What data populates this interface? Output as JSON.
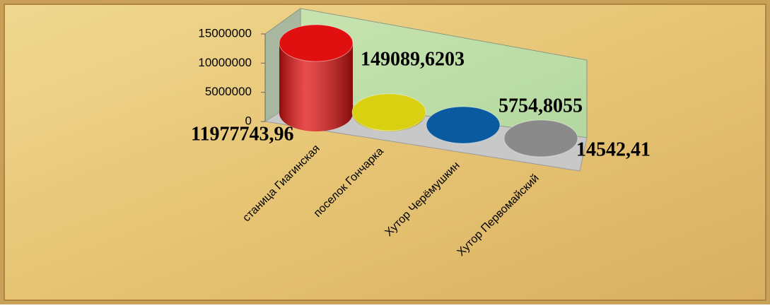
{
  "chart_data": {
    "type": "bar",
    "categories": [
      "станица Гиагинская",
      "поселок Гончарка",
      "Хутор Черёмушкин",
      "Хутор Первомайский"
    ],
    "values": [
      11977743.96,
      149089.6203,
      5754.8055,
      14542.41
    ],
    "value_labels": [
      "11977743,96",
      "149089,6203",
      "5754,8055",
      "14542,41"
    ],
    "colors": [
      "#e01010",
      "#d8d010",
      "#0a5aa0",
      "#8a8a8a"
    ],
    "ylim": [
      0,
      15000000
    ],
    "yticks": [
      0,
      5000000,
      10000000,
      15000000
    ]
  }
}
